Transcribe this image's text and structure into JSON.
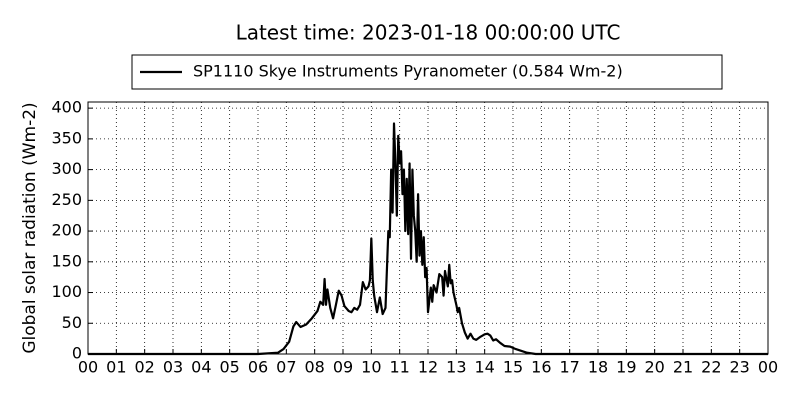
{
  "chart_data": {
    "type": "line",
    "title": "Latest time: 2023-01-18 00:00:00 UTC",
    "y_label": "Global solar radiation (Wm-2)",
    "legend_position": "upper center",
    "grid": true,
    "xlim": [
      0,
      24
    ],
    "xticks": [
      {
        "value": 0,
        "label": "00"
      },
      {
        "value": 1,
        "label": "01"
      },
      {
        "value": 2,
        "label": "02"
      },
      {
        "value": 3,
        "label": "03"
      },
      {
        "value": 4,
        "label": "04"
      },
      {
        "value": 5,
        "label": "05"
      },
      {
        "value": 6,
        "label": "06"
      },
      {
        "value": 7,
        "label": "07"
      },
      {
        "value": 8,
        "label": "08"
      },
      {
        "value": 9,
        "label": "09"
      },
      {
        "value": 10,
        "label": "10"
      },
      {
        "value": 11,
        "label": "11"
      },
      {
        "value": 12,
        "label": "12"
      },
      {
        "value": 13,
        "label": "13"
      },
      {
        "value": 14,
        "label": "14"
      },
      {
        "value": 15,
        "label": "15"
      },
      {
        "value": 16,
        "label": "16"
      },
      {
        "value": 17,
        "label": "17"
      },
      {
        "value": 18,
        "label": "18"
      },
      {
        "value": 19,
        "label": "19"
      },
      {
        "value": 20,
        "label": "20"
      },
      {
        "value": 21,
        "label": "21"
      },
      {
        "value": 22,
        "label": "22"
      },
      {
        "value": 23,
        "label": "23"
      },
      {
        "value": 24,
        "label": "00"
      }
    ],
    "ylim": [
      0,
      410
    ],
    "yticks": [
      0,
      50,
      100,
      150,
      200,
      250,
      300,
      350,
      400
    ],
    "x": [
      0,
      6,
      6.7,
      6.9,
      7.1,
      7.25,
      7.35,
      7.5,
      7.7,
      7.9,
      8.1,
      8.2,
      8.3,
      8.35,
      8.4,
      8.45,
      8.55,
      8.65,
      8.75,
      8.85,
      8.95,
      9.05,
      9.2,
      9.3,
      9.4,
      9.5,
      9.6,
      9.7,
      9.8,
      9.9,
      9.95,
      10.0,
      10.05,
      10.1,
      10.2,
      10.3,
      10.4,
      10.5,
      10.6,
      10.65,
      10.7,
      10.75,
      10.8,
      10.85,
      10.9,
      10.95,
      11.0,
      11.05,
      11.1,
      11.15,
      11.2,
      11.25,
      11.3,
      11.35,
      11.4,
      11.45,
      11.5,
      11.55,
      11.6,
      11.65,
      11.7,
      11.75,
      11.8,
      11.85,
      11.9,
      11.95,
      12.0,
      12.1,
      12.15,
      12.2,
      12.3,
      12.4,
      12.5,
      12.55,
      12.6,
      12.7,
      12.75,
      12.8,
      12.85,
      12.9,
      13.0,
      13.05,
      13.1,
      13.2,
      13.3,
      13.4,
      13.5,
      13.6,
      13.7,
      13.85,
      14.0,
      14.1,
      14.2,
      14.3,
      14.4,
      14.55,
      14.7,
      14.9,
      15.1,
      15.3,
      15.5,
      15.8,
      24
    ],
    "series": [
      {
        "name": "SP1110 Skye Instruments Pyranometer (0.584 Wm-2)",
        "color": "#000000",
        "values": [
          0,
          0,
          2,
          8,
          20,
          45,
          52,
          44,
          48,
          58,
          70,
          85,
          80,
          122,
          80,
          105,
          75,
          58,
          80,
          103,
          95,
          78,
          70,
          68,
          75,
          72,
          80,
          117,
          105,
          110,
          120,
          188,
          120,
          95,
          68,
          92,
          65,
          75,
          200,
          190,
          300,
          230,
          375,
          310,
          225,
          355,
          310,
          330,
          260,
          300,
          200,
          285,
          195,
          310,
          155,
          300,
          225,
          200,
          150,
          260,
          160,
          200,
          145,
          190,
          125,
          140,
          68,
          108,
          85,
          112,
          100,
          130,
          125,
          95,
          135,
          110,
          145,
          115,
          120,
          100,
          80,
          68,
          75,
          50,
          35,
          25,
          33,
          25,
          23,
          28,
          32,
          33,
          30,
          22,
          24,
          18,
          13,
          12,
          8,
          5,
          2,
          0,
          0
        ]
      }
    ]
  }
}
